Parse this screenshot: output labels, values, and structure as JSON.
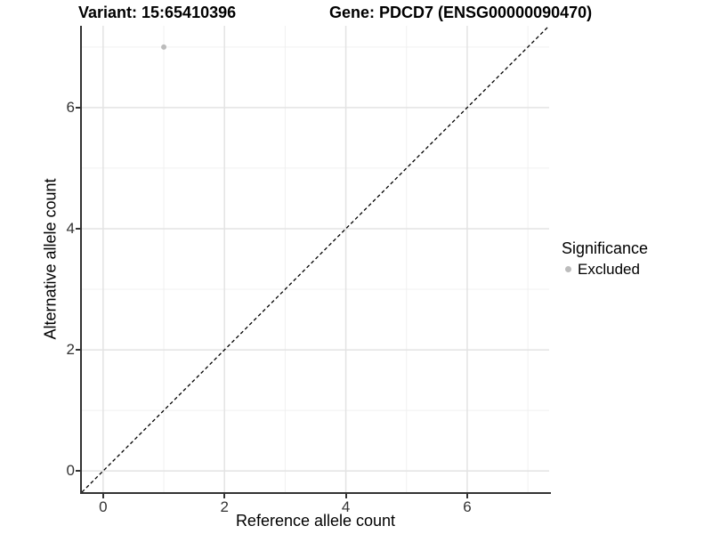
{
  "title": {
    "left": "Variant: 15:65410396",
    "right": "Gene: PDCD7 (ENSG00000090470)"
  },
  "chart_data": {
    "type": "scatter",
    "xlabel": "Reference allele count",
    "ylabel": "Alternative allele count",
    "xlim": [
      -0.35,
      7.35
    ],
    "ylim": [
      -0.35,
      7.35
    ],
    "xticks": [
      0,
      2,
      4,
      6
    ],
    "yticks": [
      0,
      2,
      4,
      6
    ],
    "xminor": [
      1,
      3,
      5,
      7
    ],
    "yminor": [
      1,
      3,
      5,
      7
    ],
    "grid": true,
    "identity_line": {
      "equation": "y = x",
      "style": "dashed",
      "color": "#000000"
    },
    "series": [
      {
        "name": "Excluded",
        "color": "#bcbcbc",
        "points": [
          {
            "x": 1,
            "y": 7
          }
        ]
      }
    ],
    "legend": {
      "title": "Significance",
      "position": "right",
      "items": [
        {
          "label": "Excluded",
          "color": "#bcbcbc"
        }
      ]
    },
    "colors": {
      "grid_major": "#e3e3e3",
      "grid_minor": "#f0f0f0",
      "axis": "#333333",
      "tick_text": "#333333",
      "title_text": "#000000",
      "point": "#bcbcbc"
    }
  }
}
